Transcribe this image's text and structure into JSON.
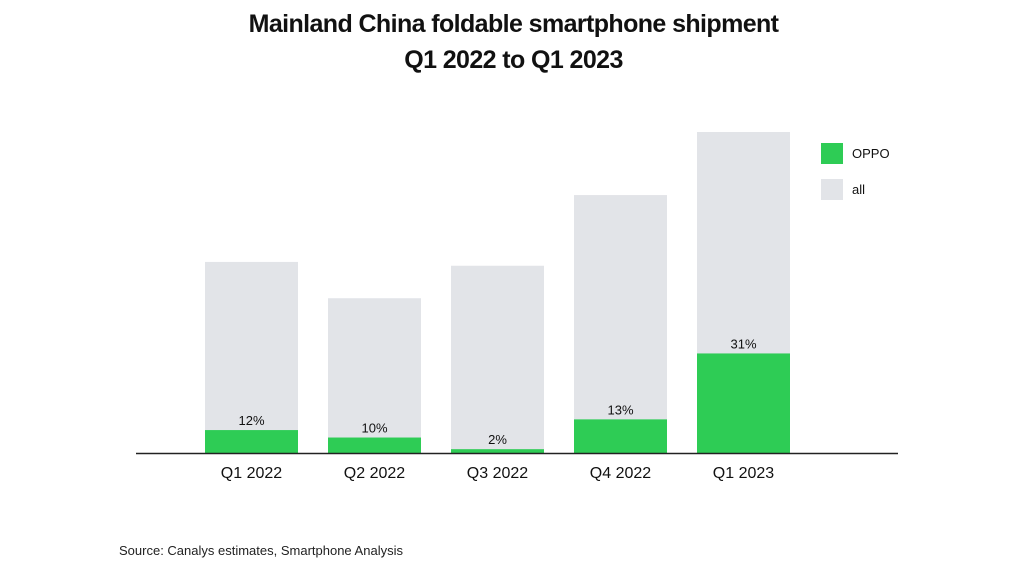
{
  "chart_data": {
    "type": "bar",
    "title": "Mainland China foldable smartphone shipment",
    "subtitle": "Q1 2022 to Q1 2023",
    "categories": [
      "Q1 2022",
      "Q2 2022",
      "Q3 2022",
      "Q4 2022",
      "Q1 2023"
    ],
    "series": [
      {
        "name": "all",
        "color": "#e2e4e8",
        "values": [
          100,
          81,
          98,
          135,
          168
        ]
      },
      {
        "name": "OPPO",
        "color": "#2ecc55",
        "values": [
          12,
          8.1,
          2.0,
          17.6,
          52.1
        ],
        "share_labels": [
          "12%",
          "10%",
          "2%",
          "13%",
          "31%"
        ]
      }
    ],
    "legend": {
      "position": "top-right",
      "entries": [
        {
          "label": "OPPO",
          "color": "#2ecc55"
        },
        {
          "label": "all",
          "color": "#e2e4e8"
        }
      ]
    },
    "ylim": [
      0,
      168
    ],
    "grid": false,
    "xlabel": "",
    "ylabel": ""
  },
  "source": "Source: Canalys estimates, Smartphone Analysis"
}
